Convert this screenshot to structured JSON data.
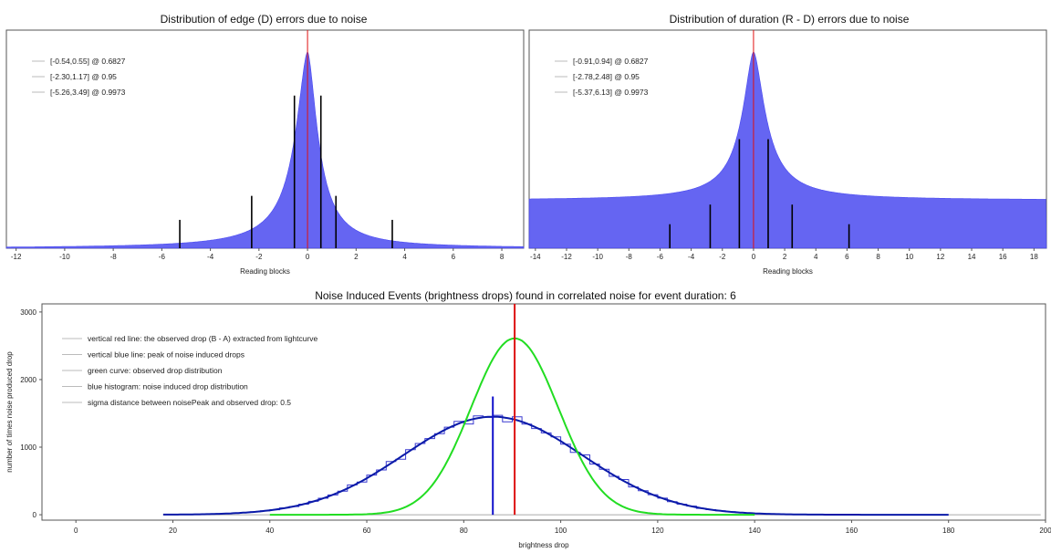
{
  "chart_data": [
    {
      "type": "bar",
      "title": "Distribution of edge (D) errors due to noise",
      "xlabel": "Reading blocks",
      "ylabel": "",
      "xlim": [
        -12.4,
        8.9
      ],
      "ylim": [
        0,
        1
      ],
      "xticks": [
        -12,
        -10,
        -8,
        -6,
        -4,
        -2,
        0,
        2,
        4,
        6,
        8
      ],
      "legend_position": "top-left",
      "legend": [
        "[-0.54,0.55] @ 0.6827",
        "[-2.30,1.17] @ 0.95",
        "[-5.26,3.49] @ 0.9973"
      ],
      "histogram": {
        "color": "#4a4af0",
        "peak_x": 0,
        "peak_height": 0.9,
        "left_scale": 0.62,
        "right_scale": 0.52
      },
      "center_line": {
        "x": 0,
        "color": "#e01010"
      },
      "interval_markers": [
        {
          "x": -0.54,
          "height": 0.7
        },
        {
          "x": 0.55,
          "height": 0.7
        },
        {
          "x": -2.3,
          "height": 0.24
        },
        {
          "x": 1.17,
          "height": 0.24
        },
        {
          "x": -5.26,
          "height": 0.13
        },
        {
          "x": 3.49,
          "height": 0.13
        }
      ],
      "grid": false
    },
    {
      "type": "bar",
      "title": "Distribution of duration (R - D) errors due to noise",
      "xlabel": "Reading blocks",
      "ylabel": "",
      "xlim": [
        -14.4,
        18.8
      ],
      "ylim": [
        0,
        1
      ],
      "xticks": [
        -14,
        -12,
        -10,
        -8,
        -6,
        -4,
        -2,
        0,
        2,
        4,
        6,
        8,
        10,
        12,
        14,
        16,
        18
      ],
      "legend_position": "top-left",
      "legend": [
        "[-0.91,0.94] @ 0.6827",
        "[-2.78,2.48] @ 0.95",
        "[-5.37,6.13] @ 0.9973"
      ],
      "histogram": {
        "color": "#4a4af0",
        "peak_x": 0,
        "peak_height": 0.9,
        "left_scale": 0.9,
        "right_scale": 0.95,
        "baseline": 0.22
      },
      "center_line": {
        "x": 0,
        "color": "#e01010"
      },
      "interval_markers": [
        {
          "x": -0.91,
          "height": 0.5
        },
        {
          "x": 0.94,
          "height": 0.5
        },
        {
          "x": -2.78,
          "height": 0.2
        },
        {
          "x": 2.48,
          "height": 0.2
        },
        {
          "x": -5.37,
          "height": 0.11
        },
        {
          "x": 6.13,
          "height": 0.11
        }
      ],
      "grid": false
    },
    {
      "type": "line",
      "title": "Noise Induced Events (brightness drops) found in correlated noise for event duration: 6",
      "xlabel": "brightness drop",
      "ylabel": "number of times noise produced drop",
      "xlim": [
        -7,
        200
      ],
      "ylim": [
        -80,
        3120
      ],
      "xticks": [
        0,
        20,
        40,
        60,
        80,
        100,
        120,
        140,
        160,
        180,
        200
      ],
      "yticks": [
        0,
        1000,
        2000,
        3000
      ],
      "legend_position": "top-left",
      "legend": [
        "vertical red line: the observed drop (B - A) extracted from lightcurve",
        "vertical blue line: peak of noise induced drops",
        "green curve: observed drop distribution",
        "blue histogram: noise induced drop distribution",
        "sigma distance between noisePeak and observed drop: 0.5"
      ],
      "series": [
        {
          "kind": "histogram",
          "color": "#3a3ad0",
          "mean": 86,
          "sigma": 18.5,
          "amplitude": 1450,
          "x_range": [
            18,
            180
          ],
          "bin_width": 2
        },
        {
          "kind": "curve",
          "color": "#0a1aa8",
          "mean": 86,
          "sigma": 18.5,
          "amplitude": 1450,
          "x_range": [
            18,
            180
          ]
        },
        {
          "kind": "curve",
          "color": "#22dd22",
          "mean": 90.5,
          "sigma": 9,
          "amplitude": 2610,
          "x_range": [
            40,
            140
          ]
        }
      ],
      "baseline": {
        "x_range": [
          18,
          199
        ],
        "y": 0,
        "color": "#aaaaaa"
      },
      "red_line": {
        "x": 90.5,
        "y_top": 3120,
        "color": "#dd1111"
      },
      "blue_line": {
        "x": 86,
        "y_top": 1750,
        "color": "#1111cc"
      },
      "grid": false
    }
  ]
}
